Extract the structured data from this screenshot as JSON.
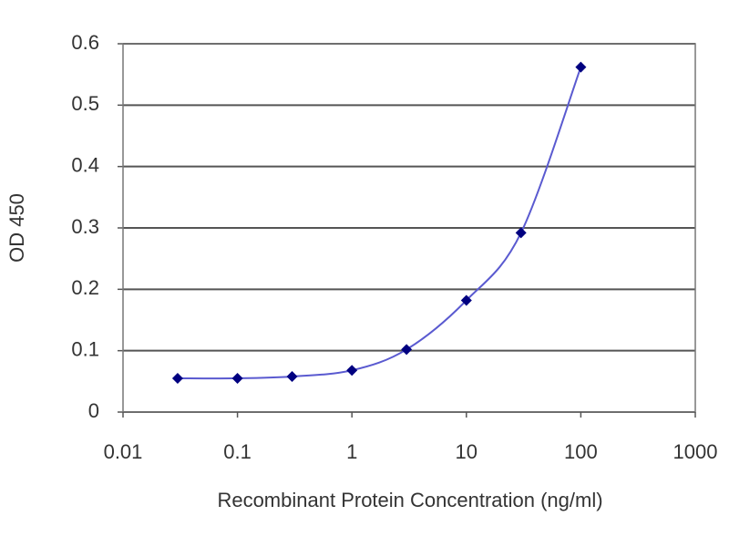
{
  "chart_data": {
    "type": "line",
    "x_label": "Recombinant Protein Concentration (ng/ml)",
    "y_label": "OD 450",
    "x": [
      0.03,
      0.1,
      0.3,
      1,
      3,
      10,
      30,
      100
    ],
    "values": [
      0.055,
      0.055,
      0.058,
      0.068,
      0.102,
      0.182,
      0.292,
      0.562
    ],
    "color": "#5a5ad0",
    "marker_color": "#000080",
    "x_log": true,
    "xlim": [
      0.01,
      1000
    ],
    "xticks": [
      0.01,
      0.1,
      1,
      10,
      100,
      1000
    ],
    "ylim": [
      0,
      0.6
    ],
    "yticks": [
      0,
      0.1,
      0.2,
      0.3,
      0.4,
      0.5,
      0.6
    ],
    "grid": true
  }
}
